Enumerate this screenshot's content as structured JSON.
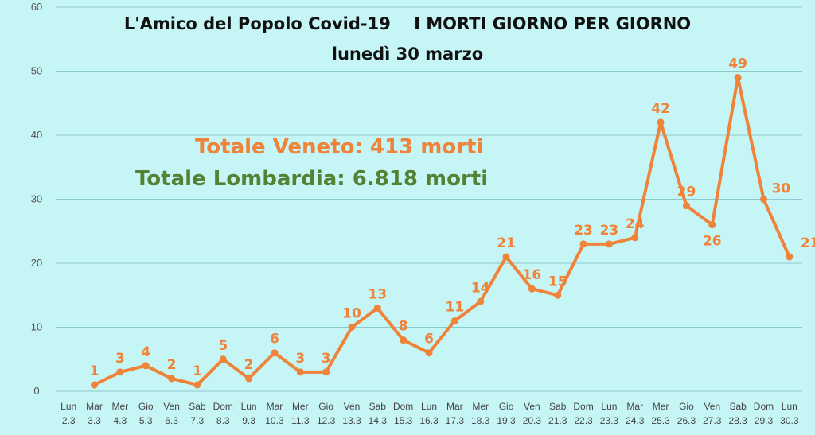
{
  "header": {
    "title": "L'Amico del Popolo Covid-19    I MORTI GIORNO PER GIORNO",
    "subtitle": "lunedì 30 marzo",
    "total_veneto": "Totale Veneto: 413 morti",
    "total_lombardia": "Totale Lombardia: 6.818 morti"
  },
  "colors": {
    "background": "#c6f5f6",
    "series": "#ee8339",
    "veneto_text": "#ee8339",
    "lombardia_text": "#548235",
    "grid": "#8cc9cc"
  },
  "chart_data": {
    "type": "line",
    "title": "",
    "xlabel": "",
    "ylabel": "",
    "ylim": [
      0,
      60
    ],
    "yticks": [
      0,
      10,
      20,
      30,
      40,
      50,
      60
    ],
    "grid": true,
    "categories": [
      [
        "Lun",
        "2.3"
      ],
      [
        "Mar",
        "3.3"
      ],
      [
        "Mer",
        "4.3"
      ],
      [
        "Gio",
        "5.3"
      ],
      [
        "Ven",
        "6.3"
      ],
      [
        "Sab",
        "7.3"
      ],
      [
        "Dom",
        "8.3"
      ],
      [
        "Lun",
        "9.3"
      ],
      [
        "Mar",
        "10.3"
      ],
      [
        "Mer",
        "11.3"
      ],
      [
        "Gio",
        "12.3"
      ],
      [
        "Ven",
        "13.3"
      ],
      [
        "Sab",
        "14.3"
      ],
      [
        "Dom",
        "15.3"
      ],
      [
        "Lun",
        "16.3"
      ],
      [
        "Mar",
        "17.3"
      ],
      [
        "Mer",
        "18.3"
      ],
      [
        "Gio",
        "19.3"
      ],
      [
        "Ven",
        "20.3"
      ],
      [
        "Sab",
        "21.3"
      ],
      [
        "Dom",
        "22.3"
      ],
      [
        "Lun",
        "23.3"
      ],
      [
        "Mar",
        "24.3"
      ],
      [
        "Mer",
        "25.3"
      ],
      [
        "Gio",
        "26.3"
      ],
      [
        "Ven",
        "27.3"
      ],
      [
        "Sab",
        "28.3"
      ],
      [
        "Dom",
        "29.3"
      ],
      [
        "Lun",
        "30.3"
      ]
    ],
    "series": [
      {
        "values": [
          null,
          1,
          3,
          4,
          2,
          1,
          5,
          2,
          6,
          3,
          3,
          10,
          13,
          8,
          6,
          11,
          14,
          21,
          16,
          15,
          23,
          23,
          24,
          42,
          29,
          26,
          49,
          30,
          21
        ]
      }
    ]
  }
}
